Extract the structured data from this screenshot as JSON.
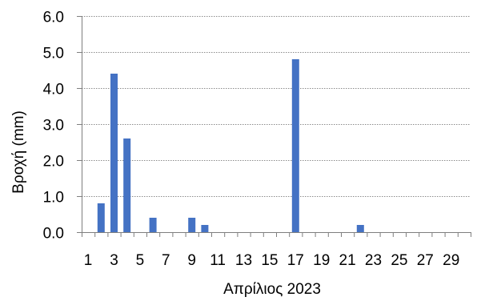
{
  "chart_data": {
    "type": "bar",
    "title": "",
    "xlabel": "Απρίλιος 2023",
    "ylabel": "Βροχή (mm)",
    "ylim": [
      0,
      6
    ],
    "yticks": [
      "0.0",
      "1.0",
      "2.0",
      "3.0",
      "4.0",
      "5.0",
      "6.0"
    ],
    "xticks": [
      "1",
      "3",
      "5",
      "7",
      "9",
      "11",
      "13",
      "15",
      "17",
      "19",
      "21",
      "23",
      "25",
      "27",
      "29"
    ],
    "grid": true,
    "legend": "none",
    "bar_color": "#4472c4",
    "grid_color": "#8c8c8c",
    "axis_color": "#7f7f7f",
    "categories": [
      1,
      2,
      3,
      4,
      5,
      6,
      7,
      8,
      9,
      10,
      11,
      12,
      13,
      14,
      15,
      16,
      17,
      18,
      19,
      20,
      21,
      22,
      23,
      24,
      25,
      26,
      27,
      28,
      29,
      30
    ],
    "values": [
      0,
      0.8,
      4.4,
      2.6,
      0,
      0.4,
      0,
      0,
      0.4,
      0.2,
      0,
      0,
      0,
      0,
      0,
      0,
      4.8,
      0,
      0,
      0,
      0,
      0.2,
      0,
      0,
      0,
      0,
      0,
      0,
      0,
      0
    ]
  }
}
